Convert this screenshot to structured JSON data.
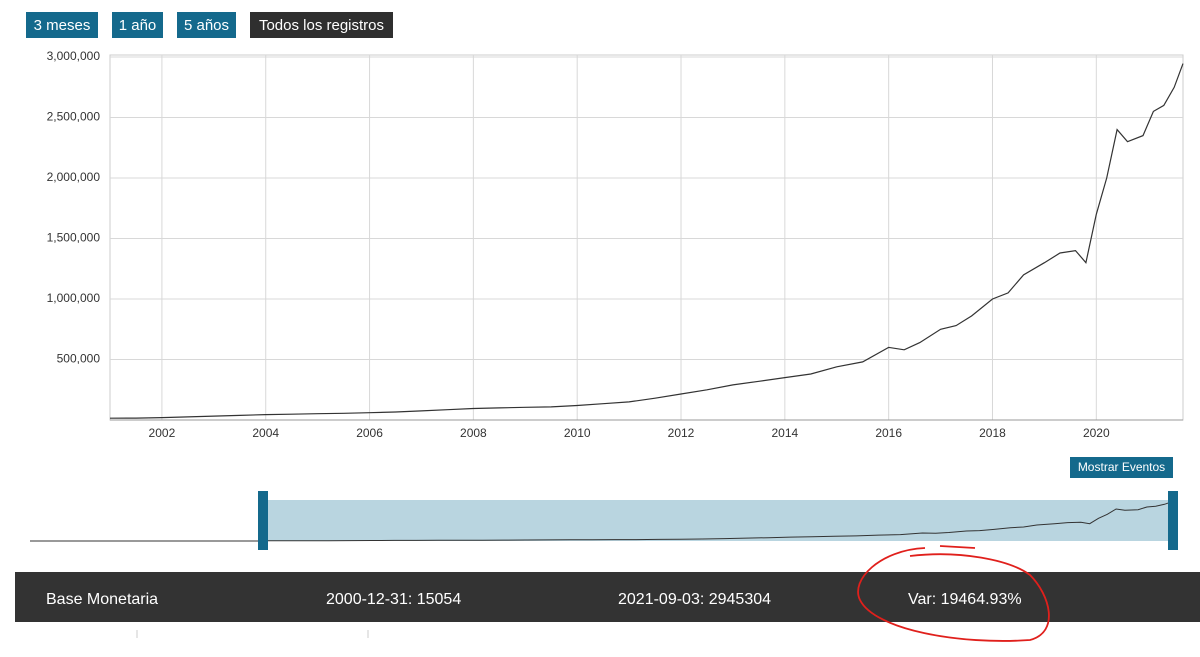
{
  "buttons": [
    "3 meses",
    "1 año",
    "5 años",
    "Todos los registros"
  ],
  "chart_data": {
    "type": "line",
    "x": [
      2000.99,
      2001.5,
      2002,
      2002.5,
      2003,
      2003.5,
      2004,
      2004.5,
      2005,
      2005.5,
      2006,
      2006.5,
      2007,
      2007.5,
      2008,
      2008.5,
      2009,
      2009.5,
      2010,
      2010.5,
      2011,
      2011.5,
      2012,
      2012.5,
      2013,
      2013.5,
      2014,
      2014.5,
      2015,
      2015.5,
      2016,
      2016.3,
      2016.6,
      2017,
      2017.3,
      2017.6,
      2018,
      2018.3,
      2018.6,
      2019,
      2019.3,
      2019.6,
      2019.8,
      2020,
      2020.2,
      2020.4,
      2020.6,
      2020.9,
      2021.1,
      2021.3,
      2021.5,
      2021.67
    ],
    "values": [
      15054,
      16000,
      20000,
      26000,
      32000,
      38000,
      45000,
      48000,
      52000,
      55000,
      60000,
      66000,
      75000,
      85000,
      95000,
      100000,
      105000,
      108000,
      120000,
      135000,
      150000,
      180000,
      215000,
      250000,
      290000,
      320000,
      350000,
      380000,
      440000,
      480000,
      600000,
      580000,
      640000,
      750000,
      780000,
      860000,
      1000000,
      1050000,
      1200000,
      1300000,
      1380000,
      1400000,
      1300000,
      1700000,
      2000000,
      2400000,
      2300000,
      2350000,
      2550000,
      2600000,
      2750000,
      2945304
    ],
    "color": "#333333",
    "xlim": [
      2001,
      2021.67
    ],
    "ylim": [
      0,
      3000000
    ],
    "xticks": [
      2002,
      2004,
      2006,
      2008,
      2010,
      2012,
      2014,
      2016,
      2018,
      2020
    ],
    "yticks": [
      {
        "value": 500000,
        "label": "500,000"
      },
      {
        "value": 1000000,
        "label": "1,000,000"
      },
      {
        "value": 1500000,
        "label": "1,500,000"
      },
      {
        "value": 2000000,
        "label": "2,000,000"
      },
      {
        "value": 2500000,
        "label": "2,500,000"
      },
      {
        "value": 3000000,
        "label": "3,000,000"
      }
    ],
    "grid": true
  },
  "events_button": "Mostrar Eventos",
  "footer": {
    "series_name": "Base Monetaria",
    "start": "2000-12-31: 15054",
    "end": "2021-09-03: 2945304",
    "variation": "Var: 19464.93%"
  }
}
